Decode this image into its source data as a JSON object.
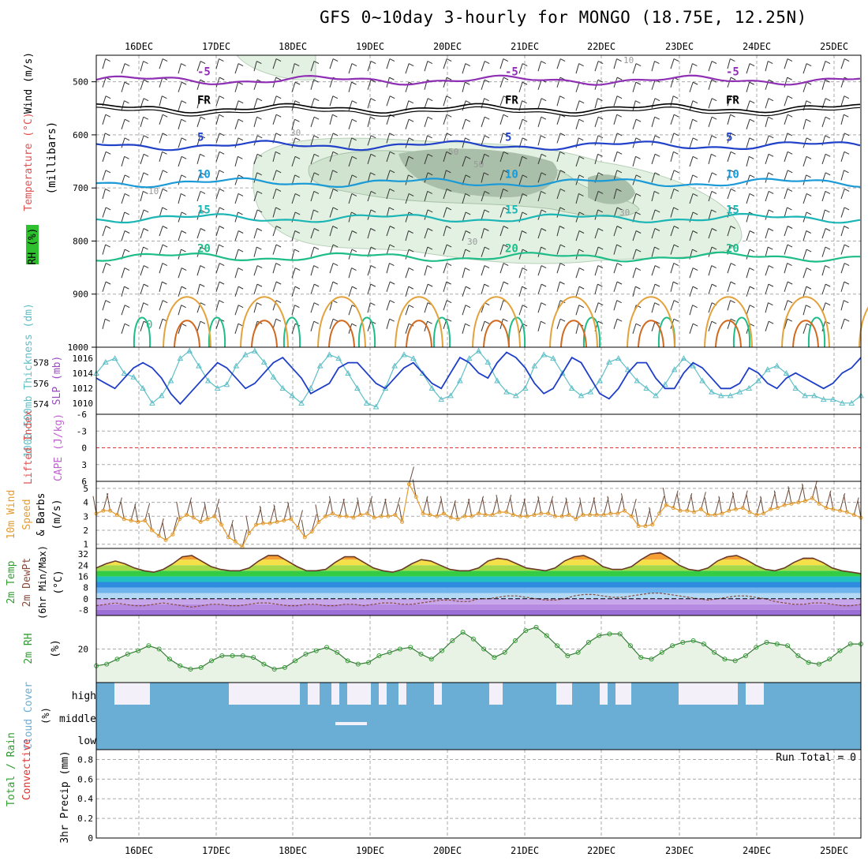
{
  "title": "GFS 0~10day 3-hourly for MONGO (18.75E, 12.25N)",
  "dates": [
    "16DEC",
    "17DEC",
    "18DEC",
    "19DEC",
    "20DEC",
    "21DEC",
    "22DEC",
    "23DEC",
    "24DEC",
    "25DEC"
  ],
  "colors": {
    "grid": "#aaaaaa",
    "rh": "#2f9e2f",
    "wind_orange": "#e39b2f",
    "slp": "#5fbfc7",
    "thick": "#1e3ec8",
    "cloud": "#6aaed6",
    "cape": "#c060d0",
    "lifted": "#e03030"
  },
  "chart_data": [
    {
      "type": "contour",
      "panel": "upper-air",
      "ylabel": "(millibars)",
      "side_labels": [
        "Wind (m/s)",
        "Temperature (°C)",
        "RH (%)"
      ],
      "ylim": [
        1000,
        450
      ],
      "yticks": [
        500,
        600,
        700,
        800,
        900,
        1000
      ],
      "temperature_isotherms": [
        {
          "label": "-5",
          "level_mb": 497,
          "color": "#8e2fb4"
        },
        {
          "label": "FR",
          "level_mb": 550,
          "color": "#000000"
        },
        {
          "label": "5",
          "level_mb": 620,
          "color": "#2141c9"
        },
        {
          "label": "10",
          "level_mb": 690,
          "color": "#1a9ad6"
        },
        {
          "label": "15",
          "level_mb": 757,
          "color": "#1bb5b5"
        },
        {
          "label": "20",
          "level_mb": 830,
          "color": "#1ebd88"
        },
        {
          "label": "0",
          "level_mb": 910,
          "color": "#1ebd88"
        }
      ],
      "rh_labels": [
        "10",
        "30",
        "50",
        "30",
        "30",
        "50",
        "10"
      ]
    },
    {
      "type": "line",
      "panel": "thickness-slp",
      "ylabel_left": "1000-500mb Thickness (dm)",
      "ylabel_right": "SLP (mb)",
      "yticks_left": [
        574,
        576,
        578
      ],
      "yticks_right": [
        1010,
        1012,
        1014,
        1016
      ],
      "series": [
        {
          "name": "SLP",
          "axis": "right",
          "values": [
            1014,
            1015.5,
            1016,
            1014,
            1013.5,
            1012,
            1010,
            1011,
            1013,
            1016,
            1017,
            1015,
            1013,
            1012,
            1012.5,
            1015,
            1016.5,
            1017,
            1015.5,
            1013.5,
            1012,
            1011,
            1010,
            1012,
            1015,
            1016.5,
            1016,
            1014,
            1012,
            1010,
            1009.5,
            1012,
            1015,
            1016.5,
            1016,
            1014,
            1012,
            1010.5,
            1011,
            1013,
            1016,
            1017,
            1015.5,
            1013,
            1011.5,
            1011,
            1012,
            1015,
            1016.5,
            1016,
            1014,
            1012,
            1011,
            1011.5,
            1013,
            1015.5,
            1016,
            1014.5,
            1013,
            1012,
            1011,
            1012.5,
            1014.5,
            1016,
            1015,
            1013,
            1011.5,
            1011,
            1011,
            1011.5,
            1012,
            1013,
            1014.5,
            1015,
            1014,
            1012,
            1011,
            1011,
            1010.5,
            1010.5,
            1010,
            1010,
            1011
          ]
        },
        {
          "name": "Thickness",
          "axis": "left",
          "values": [
            576.5,
            576,
            575.5,
            576.5,
            577.5,
            578,
            577.5,
            576.5,
            575,
            574,
            575,
            576,
            577,
            578,
            577.5,
            576.5,
            575.5,
            576,
            577,
            578,
            578.5,
            577.5,
            576.5,
            575,
            575.5,
            576,
            577.5,
            578,
            578,
            577,
            576,
            575.5,
            576.5,
            577.5,
            578,
            577,
            576,
            575.5,
            577,
            578.5,
            578,
            577,
            576.5,
            578,
            579,
            578.5,
            577.5,
            576,
            575,
            575.5,
            577,
            578.5,
            578,
            576.5,
            575,
            574.5,
            575.5,
            577,
            578,
            578,
            576.5,
            575.5,
            575.5,
            577,
            578,
            577.5,
            576.5,
            575.5,
            575.5,
            576,
            577.5,
            577,
            576,
            575.5,
            576.5,
            577,
            576.5,
            576,
            575.5,
            576,
            577,
            577.5,
            578.5
          ]
        }
      ]
    },
    {
      "type": "line",
      "panel": "cape-lifted",
      "ylabel_left": "Lifted Index",
      "ylabel_right": "CAPE (J/kg)",
      "ylim": [
        6,
        -6
      ],
      "yticks": [
        -6,
        -3,
        0,
        3,
        6
      ]
    },
    {
      "type": "line",
      "panel": "10m-wind",
      "ylabel": "10m Wind Speed & Barbs (m/s)",
      "ylim": [
        0.7,
        5.5
      ],
      "yticks": [
        1,
        2,
        3,
        4,
        5
      ],
      "series": [
        {
          "name": "10m Wind Speed",
          "values": [
            3.2,
            3.4,
            3.4,
            3.1,
            2.8,
            2.7,
            2.6,
            2.7,
            2,
            1.6,
            1.3,
            1.7,
            2.8,
            3.1,
            2.9,
            2.6,
            2.8,
            3,
            2.4,
            1.5,
            1.2,
            0.8,
            1.8,
            2.4,
            2.5,
            2.5,
            2.6,
            2.7,
            2.8,
            2.2,
            1.5,
            1.9,
            2.6,
            3,
            3.2,
            3,
            3,
            2.9,
            3.1,
            3.2,
            2.9,
            3,
            3,
            3.1,
            2.6,
            5.3,
            4.4,
            3.2,
            3.1,
            3,
            3.2,
            2.9,
            2.8,
            3,
            3,
            3.2,
            3.1,
            3.1,
            3.3,
            3.3,
            3.1,
            3,
            3,
            3.1,
            3.2,
            3.2,
            3,
            3,
            3.1,
            2.8,
            3.1,
            3.1,
            3.1,
            3.1,
            3.2,
            3.2,
            3.4,
            3,
            2.3,
            2.3,
            2.4,
            3.2,
            3.8,
            3.6,
            3.4,
            3.4,
            3.3,
            3.5,
            3.1,
            3.1,
            3.2,
            3.4,
            3.5,
            3.6,
            3.3,
            3.1,
            3.2,
            3.5,
            3.6,
            3.8,
            3.9,
            4,
            4.1,
            4.3,
            3.9,
            3.6,
            3.5,
            3.4,
            3.3,
            3.1,
            2.9
          ]
        }
      ]
    },
    {
      "type": "area",
      "panel": "2m-temp",
      "ylabel": "2m Temp 2m DewPt (6hr Min/Max) (°C)",
      "ylim": [
        -12,
        36
      ],
      "yticks": [
        -8,
        0,
        8,
        16,
        24,
        32
      ],
      "series": [
        {
          "name": "2m Temp",
          "values": [
            22,
            25,
            27,
            25,
            22,
            20,
            19,
            21,
            25,
            30,
            31,
            27,
            23,
            21,
            20,
            20,
            22,
            27,
            31,
            31,
            27,
            23,
            20,
            20,
            21,
            26,
            30,
            30,
            26,
            22,
            20,
            19,
            21,
            25,
            28,
            27,
            24,
            21,
            20,
            20,
            22,
            27,
            29,
            28,
            25,
            22,
            21,
            20,
            22,
            27,
            30,
            31,
            28,
            23,
            21,
            21,
            23,
            28,
            32,
            33,
            29,
            24,
            21,
            20,
            22,
            27,
            30,
            31,
            28,
            24,
            21,
            20,
            22,
            26,
            29,
            29,
            26,
            22,
            20,
            19,
            18
          ]
        },
        {
          "name": "2m DewPt",
          "values": [
            -5,
            -4,
            -3,
            -4,
            -5,
            -5,
            -4,
            -3,
            -4,
            -5,
            -6,
            -5,
            -4,
            -4,
            -5,
            -5,
            -4,
            -3,
            -3,
            -4,
            -5,
            -5,
            -4,
            -4,
            -5,
            -5,
            -4,
            -4,
            -5,
            -4,
            -3,
            -3,
            -4,
            -4,
            -3,
            -2,
            -1,
            -1,
            -2,
            -2,
            0,
            0,
            1,
            2,
            2,
            1,
            0,
            -1,
            -1,
            0,
            2,
            3,
            3,
            2,
            1,
            1,
            2,
            3,
            4,
            4,
            3,
            2,
            1,
            0,
            -1,
            0,
            1,
            2,
            2,
            1,
            0,
            -2,
            -3,
            -4,
            -4,
            -3,
            -3,
            -4,
            -5,
            -5,
            -4
          ]
        }
      ]
    },
    {
      "type": "area",
      "panel": "2m-rh",
      "ylabel": "2m RH (%)",
      "yticks": [
        20
      ],
      "series": [
        {
          "name": "2m RH",
          "values": [
            10,
            11,
            14,
            17,
            19,
            22,
            20,
            14,
            10,
            8,
            9,
            13,
            16,
            16,
            16,
            15,
            11,
            8,
            9,
            13,
            17,
            19,
            21,
            18,
            13,
            11,
            12,
            16,
            18,
            20,
            21,
            17,
            14,
            19,
            25,
            30,
            26,
            20,
            15,
            18,
            25,
            31,
            33,
            28,
            22,
            16,
            18,
            24,
            28,
            29,
            29,
            22,
            15,
            14,
            18,
            22,
            24,
            25,
            23,
            18,
            14,
            13,
            16,
            21,
            24,
            23,
            22,
            16,
            12,
            11,
            14,
            19,
            23,
            23
          ]
        }
      ]
    },
    {
      "type": "heatmap",
      "panel": "cloud-cover",
      "ylabel": "Cloud Cover (%)",
      "rows": [
        "high",
        "middle",
        "low"
      ]
    },
    {
      "type": "bar",
      "panel": "precip",
      "ylabel": "3hr Precip (mm)",
      "side_labels": [
        "Total / Rain",
        "Convective"
      ],
      "ylim": [
        0,
        0.9
      ],
      "yticks": [
        0,
        0.2,
        0.4,
        0.6,
        0.8
      ],
      "annotation": "Run Total = 0"
    }
  ]
}
